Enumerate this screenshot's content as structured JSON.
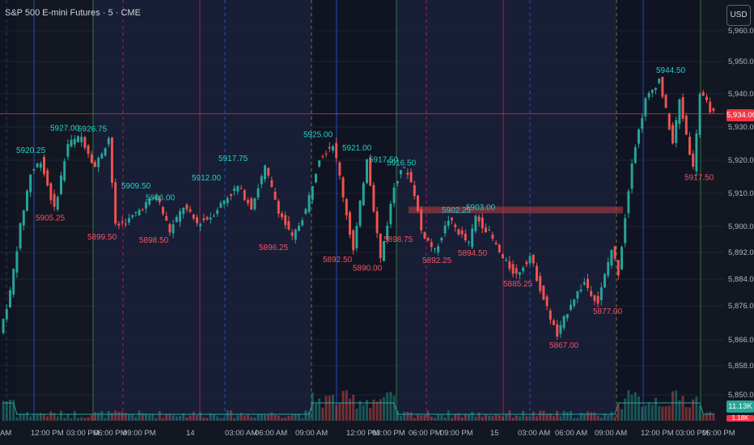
{
  "header": {
    "title": "S&P 500 E-mini Futures · 5 · CME"
  },
  "currency_button": {
    "label": "USD"
  },
  "badges": {
    "last_price": "5,934.00",
    "volume": "11.13K",
    "volume_bottom": "1.18K"
  },
  "colors": {
    "background": "#131722",
    "up": "#26a69a",
    "down": "#ef5350",
    "label_up": "#22d1c4",
    "label_down": "#f7525f",
    "rth_shade": "#1b2447",
    "last_price": "#f23645"
  },
  "chart_data": {
    "type": "candlestick",
    "title": "S&P 500 E-mini Futures · 5 · CME",
    "y_axis": {
      "ticks": [
        "5,960.00",
        "5,950.00",
        "5,940.00",
        "5,930.00",
        "5,920.00",
        "5,910.00",
        "5,900.00",
        "5,892.00",
        "5,884.00",
        "5,876.00",
        "5,866.00",
        "5,858.00",
        "5,850.00"
      ],
      "ylim": [
        5848,
        5960
      ]
    },
    "x_axis": {
      "ticks": [
        "AM",
        "12:00 PM",
        "03:00 PM",
        "06:00 PM",
        "09:00 PM",
        "14",
        "03:00 AM",
        "06:00 AM",
        "09:00 AM",
        "12:00 PM",
        "03:00 PM",
        "06:00 PM",
        "09:00 PM",
        "15",
        "03:00 AM",
        "06:00 AM",
        "09:00 AM",
        "12:00 PM",
        "03:00 PM",
        "06:00 PM"
      ]
    },
    "last_price": 5934.0,
    "resistance_zone": [
      5904,
      5906
    ],
    "high_labels": [
      {
        "label": "5920.25",
        "value": 5920.25
      },
      {
        "label": "5927.00",
        "value": 5927.0
      },
      {
        "label": "5926.75",
        "value": 5926.75
      },
      {
        "label": "5909.50",
        "value": 5909.5
      },
      {
        "label": "5906.00",
        "value": 5906.0
      },
      {
        "label": "5912.00",
        "value": 5912.0
      },
      {
        "label": "5917.75",
        "value": 5917.75
      },
      {
        "label": "5925.00",
        "value": 5925.0
      },
      {
        "label": "5921.00",
        "value": 5921.0
      },
      {
        "label": "5917.50",
        "value": 5917.5
      },
      {
        "label": "5916.50",
        "value": 5916.5
      },
      {
        "label": "5902.25",
        "value": 5902.25
      },
      {
        "label": "5903.00",
        "value": 5903.0
      },
      {
        "label": "5944.50",
        "value": 5944.5
      }
    ],
    "low_labels": [
      {
        "label": "5905.25",
        "value": 5905.25
      },
      {
        "label": "5899.50",
        "value": 5899.5
      },
      {
        "label": "5898.50",
        "value": 5898.5
      },
      {
        "label": "5896.25",
        "value": 5896.25
      },
      {
        "label": "5892.50",
        "value": 5892.5
      },
      {
        "label": "5890.00",
        "value": 5890.0
      },
      {
        "label": "5898.75",
        "value": 5898.75
      },
      {
        "label": "5892.25",
        "value": 5892.25
      },
      {
        "label": "5894.50",
        "value": 5894.5
      },
      {
        "label": "5885.25",
        "value": 5885.25
      },
      {
        "label": "5867.00",
        "value": 5867.0
      },
      {
        "label": "5877.00",
        "value": 5877.0
      },
      {
        "label": "5917.50",
        "value": 5917.5
      }
    ],
    "price_path": [
      [
        0,
        5868
      ],
      [
        3,
        5880
      ],
      [
        6,
        5900
      ],
      [
        9,
        5916
      ],
      [
        12,
        5920
      ],
      [
        16,
        5905
      ],
      [
        20,
        5925
      ],
      [
        24,
        5927
      ],
      [
        28,
        5918
      ],
      [
        32,
        5926.75
      ],
      [
        34,
        5900
      ],
      [
        38,
        5902
      ],
      [
        42,
        5906
      ],
      [
        46,
        5909.5
      ],
      [
        50,
        5898.5
      ],
      [
        54,
        5906
      ],
      [
        58,
        5901
      ],
      [
        62,
        5903
      ],
      [
        66,
        5908
      ],
      [
        70,
        5912
      ],
      [
        74,
        5906
      ],
      [
        78,
        5917.75
      ],
      [
        82,
        5905
      ],
      [
        86,
        5896.25
      ],
      [
        90,
        5905
      ],
      [
        94,
        5921
      ],
      [
        98,
        5925
      ],
      [
        100,
        5915
      ],
      [
        104,
        5892.5
      ],
      [
        108,
        5921
      ],
      [
        112,
        5890
      ],
      [
        116,
        5912
      ],
      [
        118,
        5917.5
      ],
      [
        120,
        5916.5
      ],
      [
        122,
        5910
      ],
      [
        124,
        5898.75
      ],
      [
        128,
        5892.25
      ],
      [
        132,
        5902.25
      ],
      [
        136,
        5897
      ],
      [
        138,
        5894.5
      ],
      [
        140,
        5903
      ],
      [
        144,
        5898
      ],
      [
        148,
        5890
      ],
      [
        152,
        5885.25
      ],
      [
        156,
        5891
      ],
      [
        160,
        5878
      ],
      [
        164,
        5867
      ],
      [
        168,
        5877
      ],
      [
        172,
        5883
      ],
      [
        176,
        5877
      ],
      [
        180,
        5893
      ],
      [
        182,
        5886
      ],
      [
        186,
        5920
      ],
      [
        190,
        5938
      ],
      [
        194,
        5944.5
      ],
      [
        198,
        5925
      ],
      [
        200,
        5938
      ],
      [
        204,
        5917.5
      ],
      [
        206,
        5940
      ],
      [
        210,
        5934
      ]
    ]
  }
}
